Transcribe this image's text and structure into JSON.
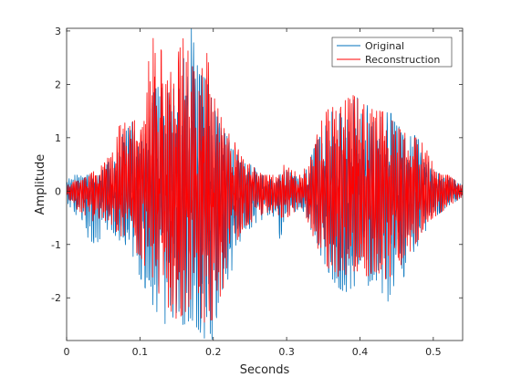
{
  "chart_data": {
    "type": "line",
    "title": "",
    "xlabel": "Seconds",
    "ylabel": "Amplitude",
    "xlim": [
      0,
      0.54
    ],
    "ylim": [
      -2.8,
      3.05
    ],
    "xticks": [
      0,
      0.1,
      0.2,
      0.3,
      0.4,
      0.5
    ],
    "xtick_labels": [
      "0",
      "0.1",
      "0.2",
      "0.3",
      "0.4",
      "0.5"
    ],
    "yticks": [
      -2,
      -1,
      0,
      1,
      2,
      3
    ],
    "ytick_labels": [
      "-2",
      "-1",
      "0",
      "1",
      "2",
      "3"
    ],
    "grid": false,
    "legend_position": "top-right",
    "series": [
      {
        "name": "Original",
        "color": "#0072BD",
        "envelope": {
          "t": [
            0,
            0.01,
            0.02,
            0.03,
            0.04,
            0.05,
            0.06,
            0.07,
            0.08,
            0.09,
            0.1,
            0.11,
            0.12,
            0.13,
            0.14,
            0.15,
            0.16,
            0.17,
            0.18,
            0.19,
            0.2,
            0.21,
            0.22,
            0.23,
            0.24,
            0.25,
            0.26,
            0.27,
            0.28,
            0.29,
            0.3,
            0.31,
            0.32,
            0.33,
            0.34,
            0.35,
            0.36,
            0.37,
            0.38,
            0.39,
            0.4,
            0.41,
            0.42,
            0.43,
            0.44,
            0.45,
            0.46,
            0.47,
            0.48,
            0.49,
            0.5,
            0.51,
            0.52,
            0.53,
            0.54
          ],
          "max": [
            0.2,
            0.3,
            0.3,
            0.3,
            0.3,
            0.4,
            0.6,
            1.0,
            1.1,
            1.3,
            0.9,
            1.2,
            1.9,
            2.0,
            1.8,
            2.0,
            2.5,
            3.05,
            2.2,
            2.1,
            1.6,
            1.2,
            1.0,
            0.7,
            0.6,
            0.5,
            0.4,
            0.3,
            0.2,
            0.3,
            0.4,
            0.3,
            0.2,
            0.5,
            0.9,
            1.1,
            1.5,
            1.4,
            1.6,
            1.7,
            1.8,
            1.7,
            1.3,
            1.4,
            1.5,
            1.3,
            1.0,
            1.1,
            1.0,
            0.7,
            0.4,
            0.3,
            0.3,
            0.2,
            0.1
          ],
          "min": [
            -0.2,
            -0.4,
            -0.6,
            -0.9,
            -1.0,
            -0.8,
            -0.7,
            -0.9,
            -1.0,
            -1.2,
            -1.6,
            -1.9,
            -2.2,
            -2.4,
            -2.6,
            -2.5,
            -2.5,
            -2.4,
            -2.6,
            -2.8,
            -2.8,
            -2.3,
            -1.8,
            -1.2,
            -0.8,
            -0.7,
            -0.6,
            -0.5,
            -0.4,
            -0.9,
            -0.6,
            -0.4,
            -0.3,
            -0.6,
            -1.0,
            -1.3,
            -1.6,
            -1.8,
            -1.9,
            -1.8,
            -1.7,
            -1.8,
            -1.6,
            -1.9,
            -2.1,
            -1.9,
            -1.6,
            -1.2,
            -1.0,
            -0.8,
            -0.5,
            -0.4,
            -0.3,
            -0.2,
            -0.1
          ]
        }
      },
      {
        "name": "Reconstruction",
        "color": "#FF0000",
        "envelope": {
          "t": [
            0,
            0.01,
            0.02,
            0.03,
            0.04,
            0.05,
            0.06,
            0.07,
            0.08,
            0.09,
            0.1,
            0.11,
            0.12,
            0.13,
            0.14,
            0.15,
            0.16,
            0.17,
            0.18,
            0.19,
            0.2,
            0.21,
            0.22,
            0.23,
            0.24,
            0.25,
            0.26,
            0.27,
            0.28,
            0.29,
            0.3,
            0.31,
            0.32,
            0.33,
            0.34,
            0.35,
            0.36,
            0.37,
            0.38,
            0.39,
            0.4,
            0.41,
            0.42,
            0.43,
            0.44,
            0.45,
            0.46,
            0.47,
            0.48,
            0.49,
            0.5,
            0.51,
            0.52,
            0.53,
            0.54
          ],
          "max": [
            0.1,
            0.2,
            0.2,
            0.3,
            0.4,
            0.5,
            0.7,
            1.2,
            1.3,
            1.4,
            1.1,
            2.3,
            3.0,
            2.6,
            2.2,
            2.5,
            2.9,
            2.4,
            2.0,
            2.7,
            1.8,
            1.4,
            1.1,
            0.9,
            0.6,
            0.5,
            0.4,
            0.3,
            0.3,
            0.3,
            0.6,
            0.4,
            0.3,
            0.6,
            1.0,
            1.4,
            1.6,
            1.5,
            1.7,
            1.8,
            1.7,
            1.6,
            1.5,
            1.5,
            1.4,
            1.2,
            1.1,
            1.0,
            1.0,
            0.8,
            0.5,
            0.3,
            0.3,
            0.2,
            0.1
          ],
          "min": [
            -0.1,
            -0.3,
            -0.4,
            -0.5,
            -0.6,
            -0.6,
            -0.6,
            -0.8,
            -0.9,
            -1.1,
            -1.2,
            -1.5,
            -1.8,
            -2.0,
            -2.2,
            -2.4,
            -2.3,
            -2.1,
            -2.3,
            -2.5,
            -2.4,
            -2.0,
            -1.5,
            -1.0,
            -0.7,
            -0.6,
            -0.5,
            -0.4,
            -0.4,
            -0.5,
            -0.5,
            -0.4,
            -0.3,
            -0.6,
            -1.0,
            -1.3,
            -1.5,
            -1.6,
            -1.6,
            -1.5,
            -1.5,
            -1.6,
            -1.5,
            -1.6,
            -1.7,
            -1.5,
            -1.3,
            -1.1,
            -0.9,
            -0.6,
            -0.5,
            -0.4,
            -0.3,
            -0.2,
            -0.1
          ]
        }
      }
    ]
  }
}
